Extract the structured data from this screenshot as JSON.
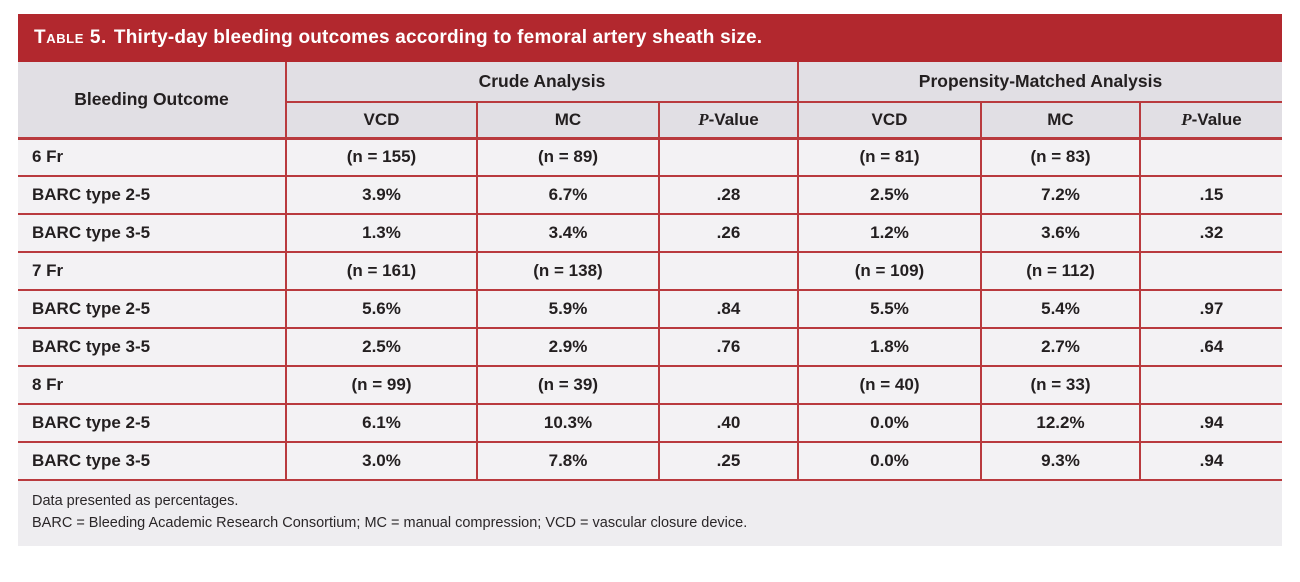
{
  "colors": {
    "title_bg": "#b2282e",
    "border": "#b93a3e",
    "header_bg": "#e1dfe4",
    "body_bg": "#f3f2f4",
    "footer_bg": "#eeedf0",
    "text": "#231f20",
    "title_text": "#ffffff"
  },
  "table": {
    "title_prefix": "Table 5.",
    "title_rest": "Thirty-day bleeding outcomes according to femoral artery sheath size.",
    "col1_header": "Bleeding Outcome",
    "group_headers": [
      "Crude Analysis",
      "Propensity-Matched Analysis"
    ],
    "sub_headers": [
      "VCD",
      "MC",
      "P-Value",
      "VCD",
      "MC",
      "P-Value"
    ],
    "rows": [
      {
        "label": "6 Fr",
        "type": "section",
        "cells": [
          "(n = 155)",
          "(n = 89)",
          "",
          "(n = 81)",
          "(n = 83)",
          ""
        ]
      },
      {
        "label": "BARC type 2-5",
        "type": "data",
        "cells": [
          "3.9%",
          "6.7%",
          ".28",
          "2.5%",
          "7.2%",
          ".15"
        ]
      },
      {
        "label": "BARC type 3-5",
        "type": "data",
        "cells": [
          "1.3%",
          "3.4%",
          ".26",
          "1.2%",
          "3.6%",
          ".32"
        ]
      },
      {
        "label": "7 Fr",
        "type": "section",
        "cells": [
          "(n = 161)",
          "(n = 138)",
          "",
          "(n = 109)",
          "(n = 112)",
          ""
        ]
      },
      {
        "label": "BARC type 2-5",
        "type": "data",
        "cells": [
          "5.6%",
          "5.9%",
          ".84",
          "5.5%",
          "5.4%",
          ".97"
        ]
      },
      {
        "label": "BARC type 3-5",
        "type": "data",
        "cells": [
          "2.5%",
          "2.9%",
          ".76",
          "1.8%",
          "2.7%",
          ".64"
        ]
      },
      {
        "label": "8 Fr",
        "type": "section",
        "cells": [
          "(n = 99)",
          "(n = 39)",
          "",
          "(n = 40)",
          "(n = 33)",
          ""
        ]
      },
      {
        "label": "BARC type 2-5",
        "type": "data",
        "cells": [
          "6.1%",
          "10.3%",
          ".40",
          "0.0%",
          "12.2%",
          ".94"
        ]
      },
      {
        "label": "BARC type 3-5",
        "type": "data",
        "cells": [
          "3.0%",
          "7.8%",
          ".25",
          "0.0%",
          "9.3%",
          ".94"
        ]
      }
    ],
    "footnotes": [
      "Data presented as percentages.",
      "BARC = Bleeding Academic Research Consortium; MC = manual compression; VCD = vascular closure device."
    ]
  }
}
